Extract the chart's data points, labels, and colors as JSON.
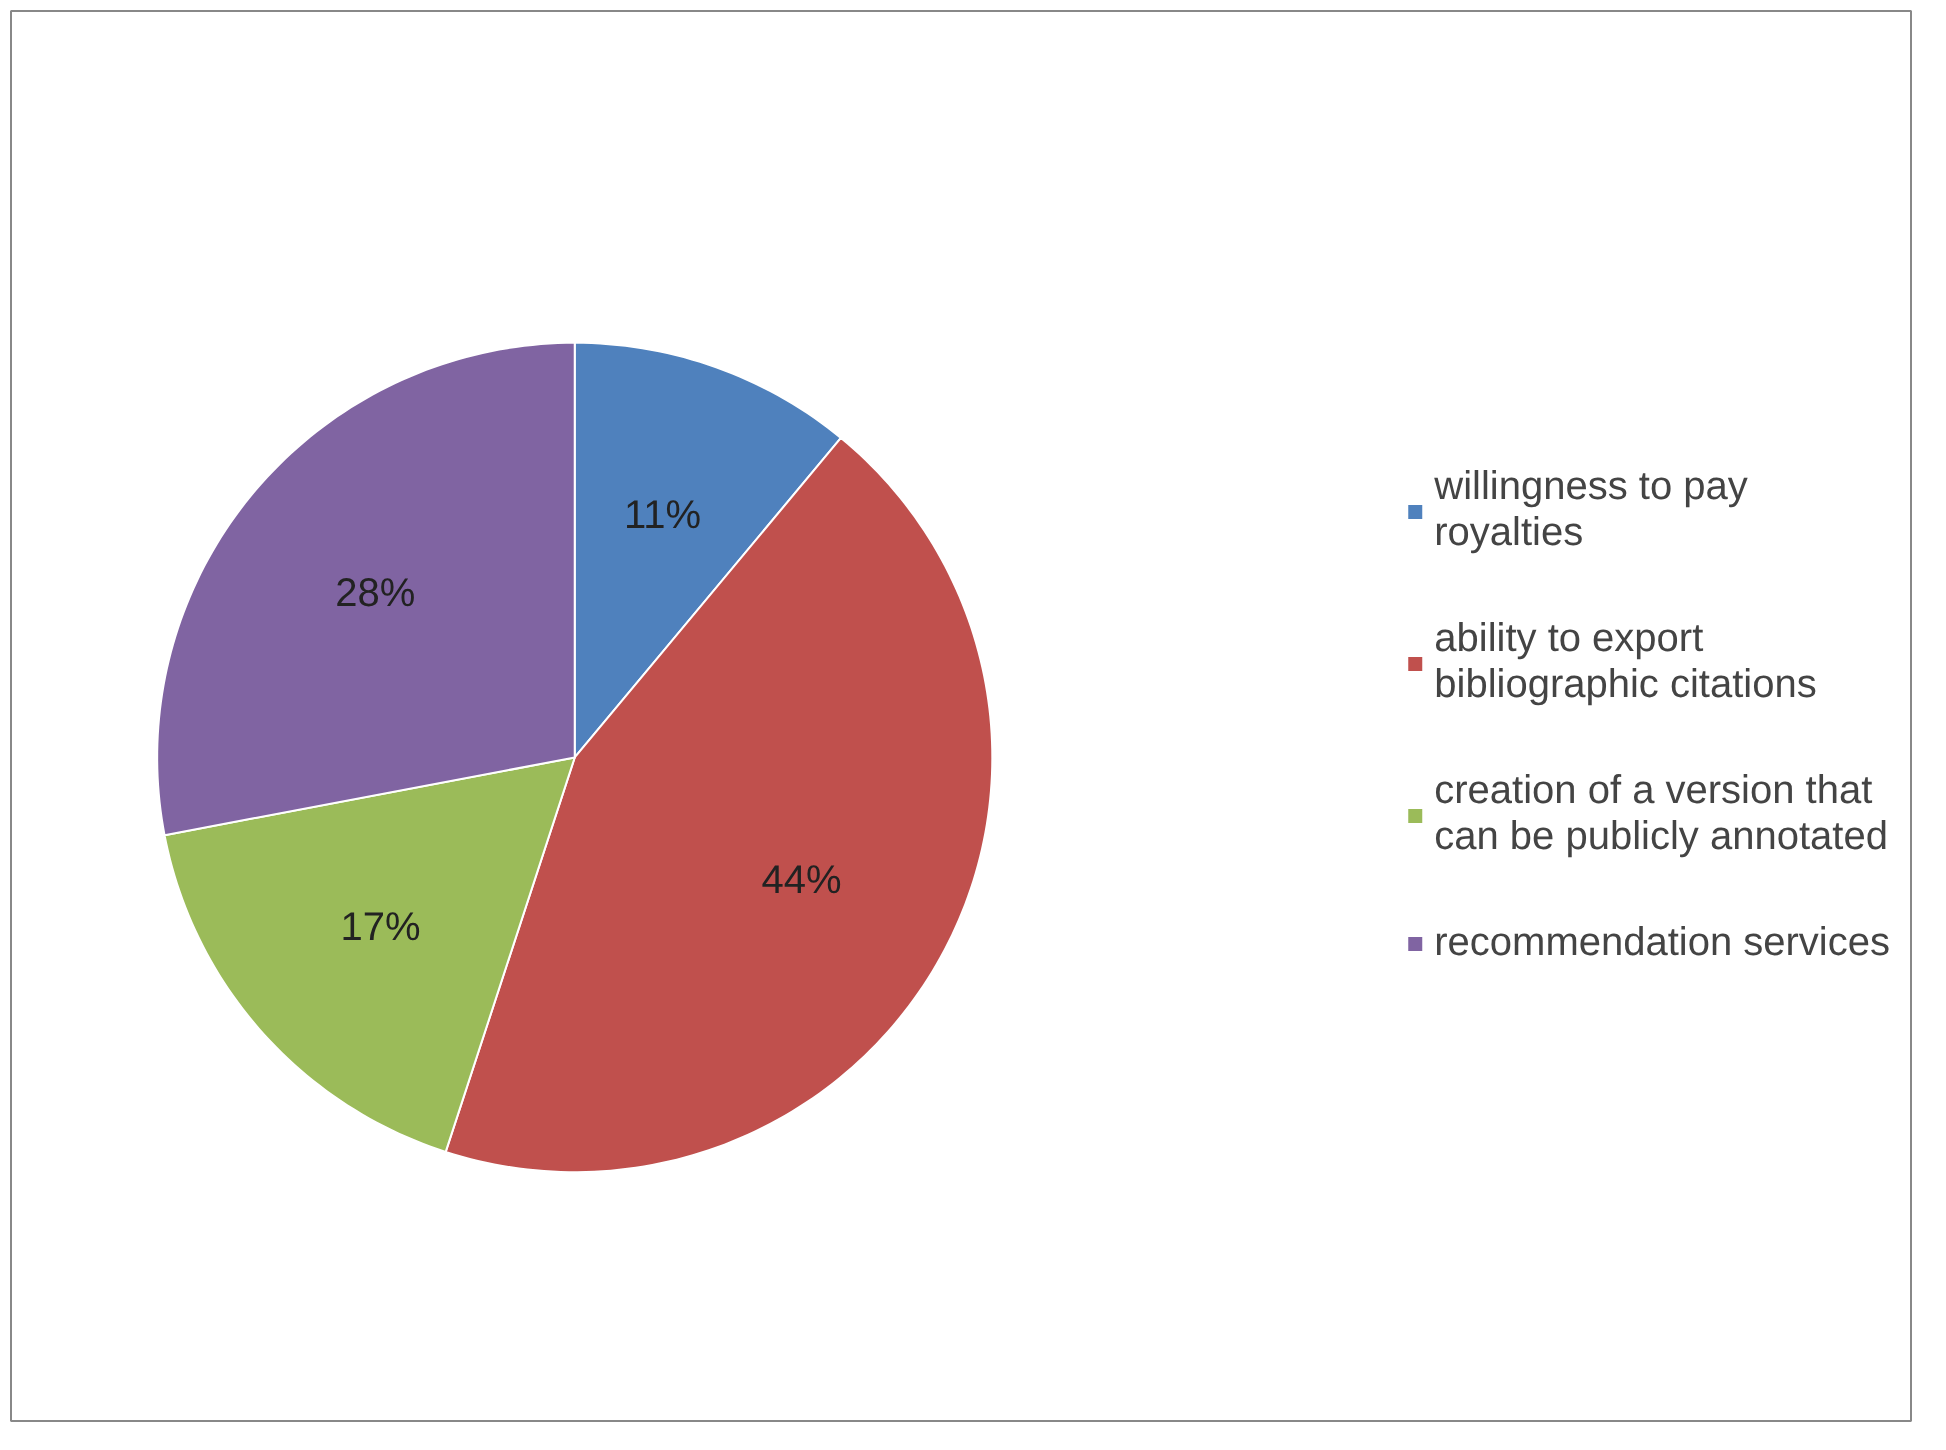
{
  "chart_data": {
    "type": "pie",
    "categories": [
      "willingness to pay royalties",
      "ability to export bibliographic citations",
      "creation of a version that can be publicly annotated",
      "recommendation services"
    ],
    "values": [
      11,
      44,
      17,
      28
    ],
    "colors": [
      "#4f81bd",
      "#c0504d",
      "#9bbb59",
      "#8064a2"
    ],
    "value_labels": [
      "11%",
      "44%",
      "17%",
      "28%"
    ],
    "legend": "right"
  }
}
